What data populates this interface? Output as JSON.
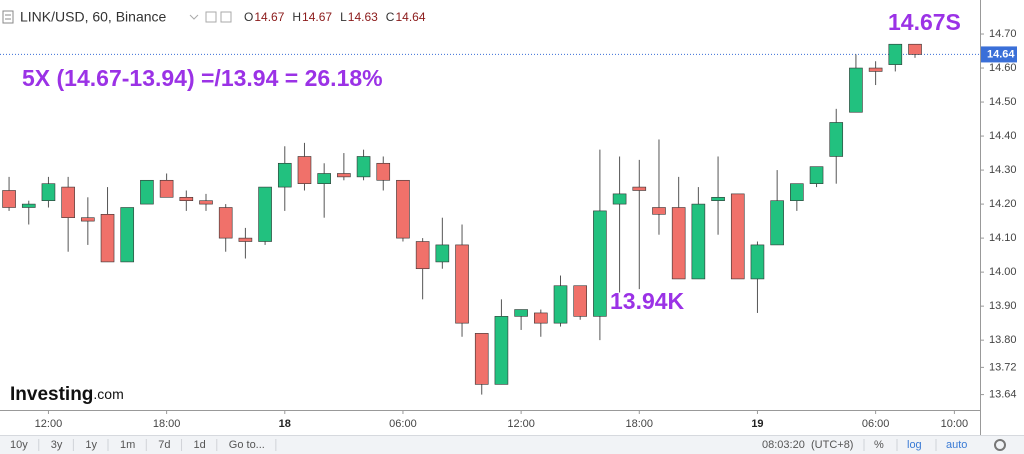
{
  "chart_data": {
    "type": "candlestick",
    "title": "LINK/USD, 60, Binance",
    "ohlc_legend": [
      {
        "label": "O",
        "value": 14.67
      },
      {
        "label": "H",
        "value": 14.67
      },
      {
        "label": "L",
        "value": 14.63
      },
      {
        "label": "C",
        "value": 14.64
      }
    ],
    "open": [
      14.24,
      14.19,
      14.21,
      14.25,
      14.16,
      14.17,
      14.03,
      14.2,
      14.27,
      14.22,
      14.21,
      14.19,
      14.1,
      14.09,
      14.25,
      14.34,
      14.26,
      14.29,
      14.28,
      14.32,
      14.27,
      14.09,
      14.03,
      14.08,
      13.82,
      13.67,
      13.87,
      13.88,
      13.85,
      13.96,
      13.87,
      14.2,
      14.25,
      14.19,
      14.19,
      13.98,
      14.21,
      14.23,
      13.98,
      14.08,
      14.21,
      14.26,
      14.34,
      14.47,
      14.6,
      14.61,
      14.67
    ],
    "high": [
      14.28,
      14.21,
      14.28,
      14.28,
      14.22,
      14.25,
      14.19,
      14.27,
      14.29,
      14.24,
      14.23,
      14.2,
      14.13,
      14.25,
      14.37,
      14.38,
      14.32,
      14.35,
      14.36,
      14.34,
      14.27,
      14.1,
      14.16,
      14.14,
      13.82,
      13.92,
      13.89,
      13.89,
      13.99,
      13.96,
      14.36,
      14.34,
      14.33,
      14.39,
      14.28,
      14.25,
      14.34,
      14.23,
      14.09,
      14.3,
      14.26,
      14.31,
      14.48,
      14.64,
      14.62,
      14.67,
      14.67
    ],
    "low": [
      14.18,
      14.14,
      14.19,
      14.06,
      14.08,
      14.03,
      14.03,
      14.2,
      14.22,
      14.18,
      14.18,
      14.06,
      14.04,
      14.08,
      14.18,
      14.24,
      14.16,
      14.27,
      14.27,
      14.24,
      14.09,
      13.92,
      14.01,
      13.81,
      13.64,
      13.67,
      13.83,
      13.81,
      13.84,
      13.86,
      13.8,
      13.94,
      13.95,
      14.11,
      13.98,
      13.98,
      14.11,
      13.98,
      13.88,
      14.08,
      14.18,
      14.25,
      14.26,
      14.47,
      14.55,
      14.59,
      14.63
    ],
    "close": [
      14.19,
      14.2,
      14.26,
      14.16,
      14.15,
      14.03,
      14.19,
      14.27,
      14.22,
      14.21,
      14.2,
      14.1,
      14.09,
      14.25,
      14.32,
      14.26,
      14.29,
      14.28,
      14.34,
      14.27,
      14.1,
      14.01,
      14.08,
      13.85,
      13.67,
      13.87,
      13.89,
      13.85,
      13.96,
      13.87,
      14.18,
      14.23,
      14.24,
      14.17,
      13.98,
      14.2,
      14.22,
      13.98,
      14.08,
      14.21,
      14.26,
      14.31,
      14.44,
      14.6,
      14.59,
      14.67,
      14.64
    ],
    "up_color": "#22c17f",
    "down_color": "#f0716a",
    "last_price": 14.64,
    "last_price_color": "#3a6fd8",
    "ylim": [
      13.53,
      14.8
    ],
    "yticks": [
      {
        "value": 14.7,
        "label": "14.70"
      },
      {
        "value": 14.6,
        "label": "14.60"
      },
      {
        "value": 14.5,
        "label": "14.50"
      },
      {
        "value": 14.4,
        "label": "14.40"
      },
      {
        "value": 14.3,
        "label": "14.30"
      },
      {
        "value": 14.2,
        "label": "14.20"
      },
      {
        "value": 14.1,
        "label": "14.10"
      },
      {
        "value": 14.0,
        "label": "14.00"
      },
      {
        "value": 13.9,
        "label": "13.90"
      },
      {
        "value": 13.8,
        "label": "13.80"
      },
      13.72,
      13.64
    ],
    "xlim": [
      -0.46,
      49.3
    ],
    "xticks": [
      {
        "value": 2,
        "label": "12:00"
      },
      {
        "value": 8,
        "label": "18:00"
      },
      {
        "value": 14,
        "label": "18"
      },
      {
        "value": 20,
        "label": "06:00"
      },
      {
        "value": 26,
        "label": "12:00"
      },
      {
        "value": 32,
        "label": "18:00"
      },
      {
        "value": 38,
        "label": "19"
      },
      {
        "value": 44,
        "label": "06:00"
      },
      {
        "value": 48,
        "label": "10:00"
      }
    ],
    "annotations": [
      {
        "text": "5X (14.67-13.94) =/13.94 = 26.18%",
        "color": "#9b32e6"
      },
      {
        "text": "13.94K",
        "color": "#9b32e6"
      },
      {
        "text": "14.67S",
        "color": "#9b32e6"
      }
    ],
    "logo": {
      "brand": "Investing",
      "suffix": ".com"
    }
  },
  "toolbar": {
    "ranges": [
      "10y",
      "3y",
      "1y",
      "1m",
      "7d",
      "1d",
      "Go to..."
    ],
    "clock": "08:03:20",
    "timezone": "(UTC+8)",
    "options": [
      "%",
      "log",
      "auto"
    ]
  }
}
